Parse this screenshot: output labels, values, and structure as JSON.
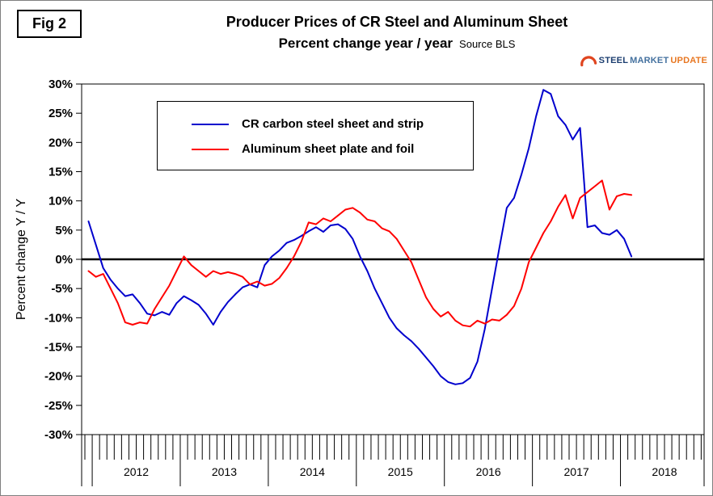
{
  "figure": {
    "fig_label": "Fig 2"
  },
  "header": {
    "title_line1": "Producer Prices of CR Steel and Aluminum Sheet",
    "title_line2": "Percent change year / year",
    "source": "Source BLS"
  },
  "logo": {
    "words": [
      {
        "text": "STEEL",
        "color": "#1c3e70"
      },
      {
        "text": "MARKET",
        "color": "#44719f"
      },
      {
        "text": "UPDATE",
        "color": "#e87722"
      }
    ],
    "swoosh_color": "#e0451f"
  },
  "chart_data": {
    "type": "line",
    "title": "Producer Prices of CR Steel and Aluminum Sheet",
    "subtitle": "Percent change year / year",
    "source": "Source BLS",
    "ylabel": "Percent change Y / Y",
    "ylim": [
      -30,
      30
    ],
    "ytick_step": 5,
    "ytick_format": "percent",
    "grid": false,
    "zero_line": true,
    "x_range_years": [
      2011.88,
      2018.95
    ],
    "year_labels": [
      "2012",
      "2013",
      "2014",
      "2015",
      "2016",
      "2017",
      "2018"
    ],
    "legend": {
      "position": "top-left-inside",
      "entries": [
        "CR carbon steel sheet and strip",
        "Aluminum sheet plate and foil"
      ]
    },
    "months": [
      "2011-12",
      "2012-01",
      "2012-02",
      "2012-03",
      "2012-04",
      "2012-05",
      "2012-06",
      "2012-07",
      "2012-08",
      "2012-09",
      "2012-10",
      "2012-11",
      "2012-12",
      "2013-01",
      "2013-02",
      "2013-03",
      "2013-04",
      "2013-05",
      "2013-06",
      "2013-07",
      "2013-08",
      "2013-09",
      "2013-10",
      "2013-11",
      "2013-12",
      "2014-01",
      "2014-02",
      "2014-03",
      "2014-04",
      "2014-05",
      "2014-06",
      "2014-07",
      "2014-08",
      "2014-09",
      "2014-10",
      "2014-11",
      "2014-12",
      "2015-01",
      "2015-02",
      "2015-03",
      "2015-04",
      "2015-05",
      "2015-06",
      "2015-07",
      "2015-08",
      "2015-09",
      "2015-10",
      "2015-11",
      "2015-12",
      "2016-01",
      "2016-02",
      "2016-03",
      "2016-04",
      "2016-05",
      "2016-06",
      "2016-07",
      "2016-08",
      "2016-09",
      "2016-10",
      "2016-11",
      "2016-12",
      "2017-01",
      "2017-02",
      "2017-03",
      "2017-04",
      "2017-05",
      "2017-06",
      "2017-07",
      "2017-08",
      "2017-09",
      "2017-10",
      "2017-11",
      "2017-12",
      "2018-01",
      "2018-02"
    ],
    "series": [
      {
        "name": "CR carbon steel sheet and strip",
        "color": "#0000cd",
        "values": [
          6.5,
          2.5,
          -1.5,
          -3.5,
          -5.0,
          -6.3,
          -6.0,
          -7.5,
          -9.3,
          -9.6,
          -9.0,
          -9.5,
          -7.5,
          -6.3,
          -7.0,
          -7.8,
          -9.3,
          -11.2,
          -9.0,
          -7.3,
          -6.0,
          -4.8,
          -4.3,
          -4.8,
          -1.0,
          0.5,
          1.5,
          2.8,
          3.3,
          4.0,
          4.8,
          5.5,
          4.7,
          5.8,
          6.0,
          5.2,
          3.5,
          0.5,
          -2.0,
          -5.0,
          -7.5,
          -10.0,
          -11.8,
          -13.0,
          -14.0,
          -15.3,
          -16.8,
          -18.3,
          -20.0,
          -21.0,
          -21.4,
          -21.2,
          -20.3,
          -17.5,
          -12.0,
          -5.0,
          2.0,
          8.8,
          10.5,
          14.5,
          19.0,
          24.5,
          29.0,
          28.3,
          24.5,
          23.0,
          20.5,
          22.5,
          5.5,
          5.8,
          4.5,
          4.2,
          5.0,
          3.5,
          0.5
        ]
      },
      {
        "name": "Aluminum sheet plate and foil",
        "color": "#ff0000",
        "values": [
          -2.0,
          -3.0,
          -2.5,
          -5.0,
          -7.5,
          -10.8,
          -11.2,
          -10.8,
          -11.0,
          -8.5,
          -6.5,
          -4.5,
          -2.0,
          0.5,
          -1.0,
          -2.0,
          -3.0,
          -2.0,
          -2.5,
          -2.2,
          -2.5,
          -3.0,
          -4.3,
          -3.8,
          -4.5,
          -4.2,
          -3.2,
          -1.5,
          0.5,
          3.0,
          6.3,
          6.0,
          7.0,
          6.5,
          7.5,
          8.5,
          8.8,
          8.0,
          6.8,
          6.5,
          5.3,
          4.8,
          3.5,
          1.5,
          -0.5,
          -3.5,
          -6.5,
          -8.5,
          -9.8,
          -9.0,
          -10.5,
          -11.3,
          -11.5,
          -10.5,
          -11.0,
          -10.3,
          -10.5,
          -9.5,
          -8.0,
          -5.0,
          -0.5,
          2.0,
          4.5,
          6.5,
          9.0,
          11.0,
          7.0,
          10.5,
          11.5,
          12.5,
          13.5,
          8.5,
          10.8,
          11.2,
          11.0
        ]
      }
    ]
  }
}
